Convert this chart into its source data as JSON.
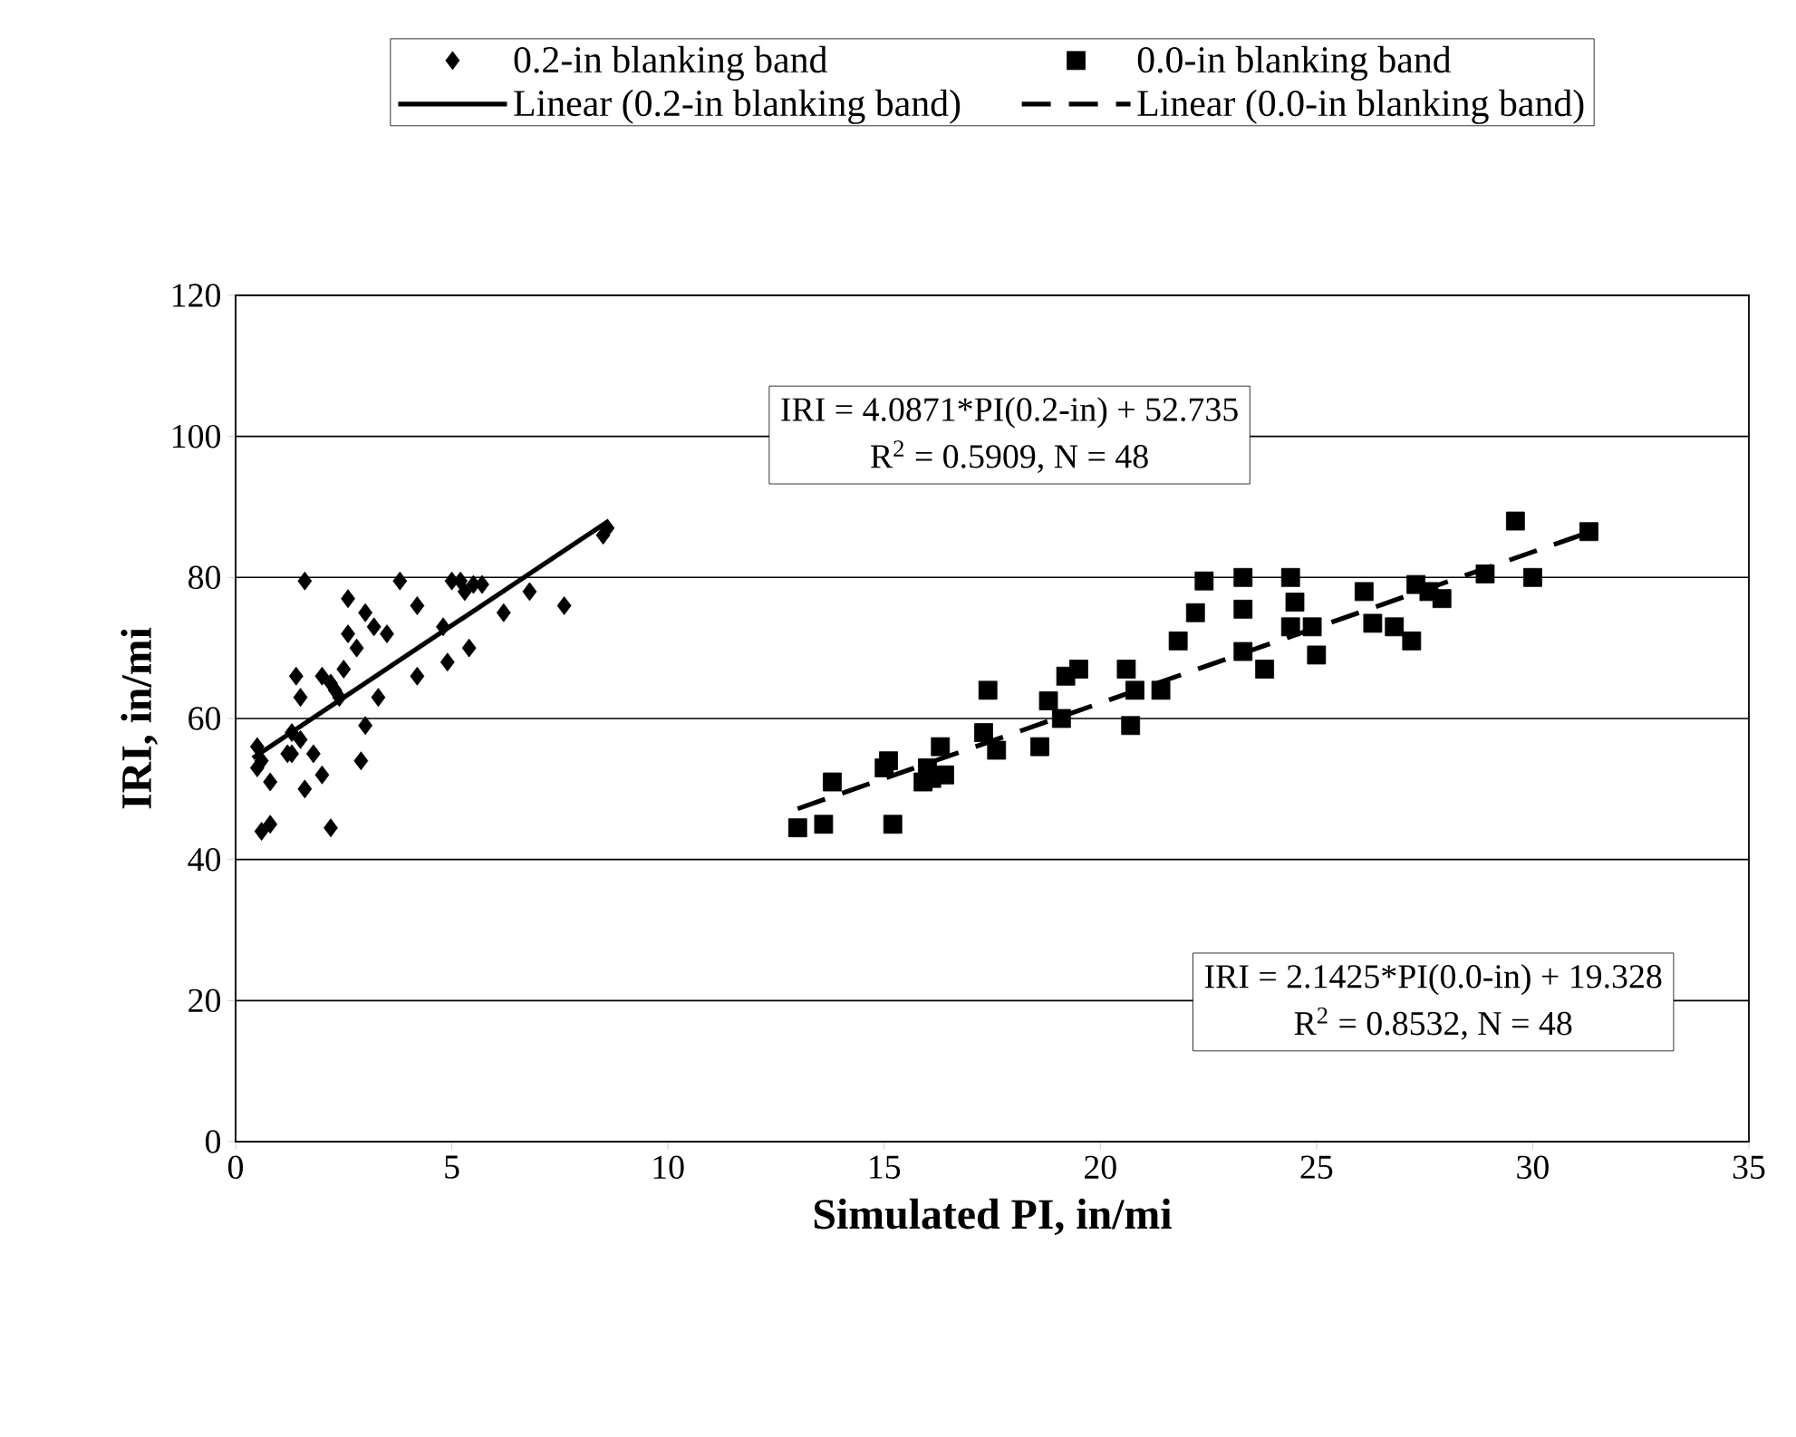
{
  "chart_data": {
    "type": "scatter",
    "xlabel": "Simulated PI, in/mi",
    "ylabel": "IRI, in/mi",
    "xlim": [
      0,
      35
    ],
    "ylim": [
      0,
      120
    ],
    "xticks": [
      0,
      5,
      10,
      15,
      20,
      25,
      30,
      35
    ],
    "yticks": [
      0,
      20,
      40,
      60,
      80,
      100,
      120
    ],
    "grid": "y",
    "legend": "top",
    "series": [
      {
        "name": "0.2-in blanking band",
        "type": "scatter",
        "marker": "diamond",
        "color": "#000000",
        "x": [
          0.5,
          0.5,
          0.6,
          0.8,
          0.8,
          1.2,
          1.3,
          1.4,
          1.5,
          1.5,
          1.6,
          1.6,
          1.8,
          2.0,
          2.0,
          2.2,
          2.2,
          2.4,
          2.5,
          2.6,
          2.6,
          2.8,
          2.9,
          3.0,
          3.0,
          3.2,
          3.3,
          3.5,
          3.8,
          4.2,
          4.2,
          4.8,
          4.9,
          5.2,
          5.4,
          5.5,
          5.7,
          6.2,
          6.8,
          7.6,
          8.6,
          8.5,
          5.3,
          5.0,
          1.3,
          0.6,
          2.3
        ],
        "values": [
          53,
          56,
          44,
          45,
          51,
          55,
          58,
          66,
          63,
          57,
          79.5,
          50,
          55,
          66,
          52,
          44.5,
          65,
          63,
          67,
          77,
          72,
          70,
          54,
          75,
          59,
          73,
          63,
          72,
          79.5,
          66,
          76,
          73,
          68,
          79.5,
          70,
          79,
          79,
          75,
          78,
          76,
          87,
          86,
          78,
          79.5,
          55,
          54,
          64
        ]
      },
      {
        "name": "0.0-in blanking band",
        "type": "scatter",
        "marker": "square",
        "color": "#000000",
        "x": [
          13.0,
          13.6,
          13.8,
          15.0,
          15.1,
          15.2,
          15.9,
          16.0,
          16.3,
          16.4,
          17.3,
          17.4,
          17.6,
          18.6,
          18.8,
          19.1,
          19.2,
          19.5,
          20.6,
          20.7,
          20.8,
          21.4,
          21.8,
          22.2,
          22.4,
          23.3,
          23.3,
          23.3,
          23.8,
          24.4,
          24.4,
          24.5,
          24.9,
          25.0,
          26.1,
          26.3,
          26.8,
          27.2,
          27.3,
          27.6,
          27.9,
          28.9,
          29.6,
          30.0,
          31.3,
          16.1
        ],
        "values": [
          44.5,
          45,
          51,
          53,
          54,
          45,
          51,
          53,
          56,
          52,
          58,
          64,
          55.5,
          56,
          62.5,
          60,
          66,
          67,
          67,
          59,
          64,
          64,
          71,
          75,
          79.5,
          80,
          75.5,
          69.5,
          67,
          80,
          73,
          76.5,
          73,
          69,
          78,
          73.5,
          73,
          71,
          79,
          78,
          77,
          80.5,
          88,
          80,
          86.5,
          51.5
        ]
      },
      {
        "name": "Linear (0.2-in blanking band)",
        "type": "line",
        "marker": "none",
        "line_style": "solid",
        "color": "#000000",
        "x": [
          0.4,
          8.6
        ],
        "values": [
          54.4,
          87.9
        ]
      },
      {
        "name": "Linear (0.0-in blanking band)",
        "type": "line",
        "marker": "none",
        "line_style": "dashed",
        "color": "#000000",
        "x": [
          13.0,
          31.3
        ],
        "values": [
          47.2,
          86.4
        ]
      }
    ],
    "annotations": [
      "IRI = 4.0871*PI(0.2-in) + 52.735",
      "R$^{2}$ = 0.5909, N = 48",
      "IRI = 2.1425*PI(0.0-in) + 19.328",
      "R$^{2}$ = 0.8532, N = 48"
    ]
  }
}
